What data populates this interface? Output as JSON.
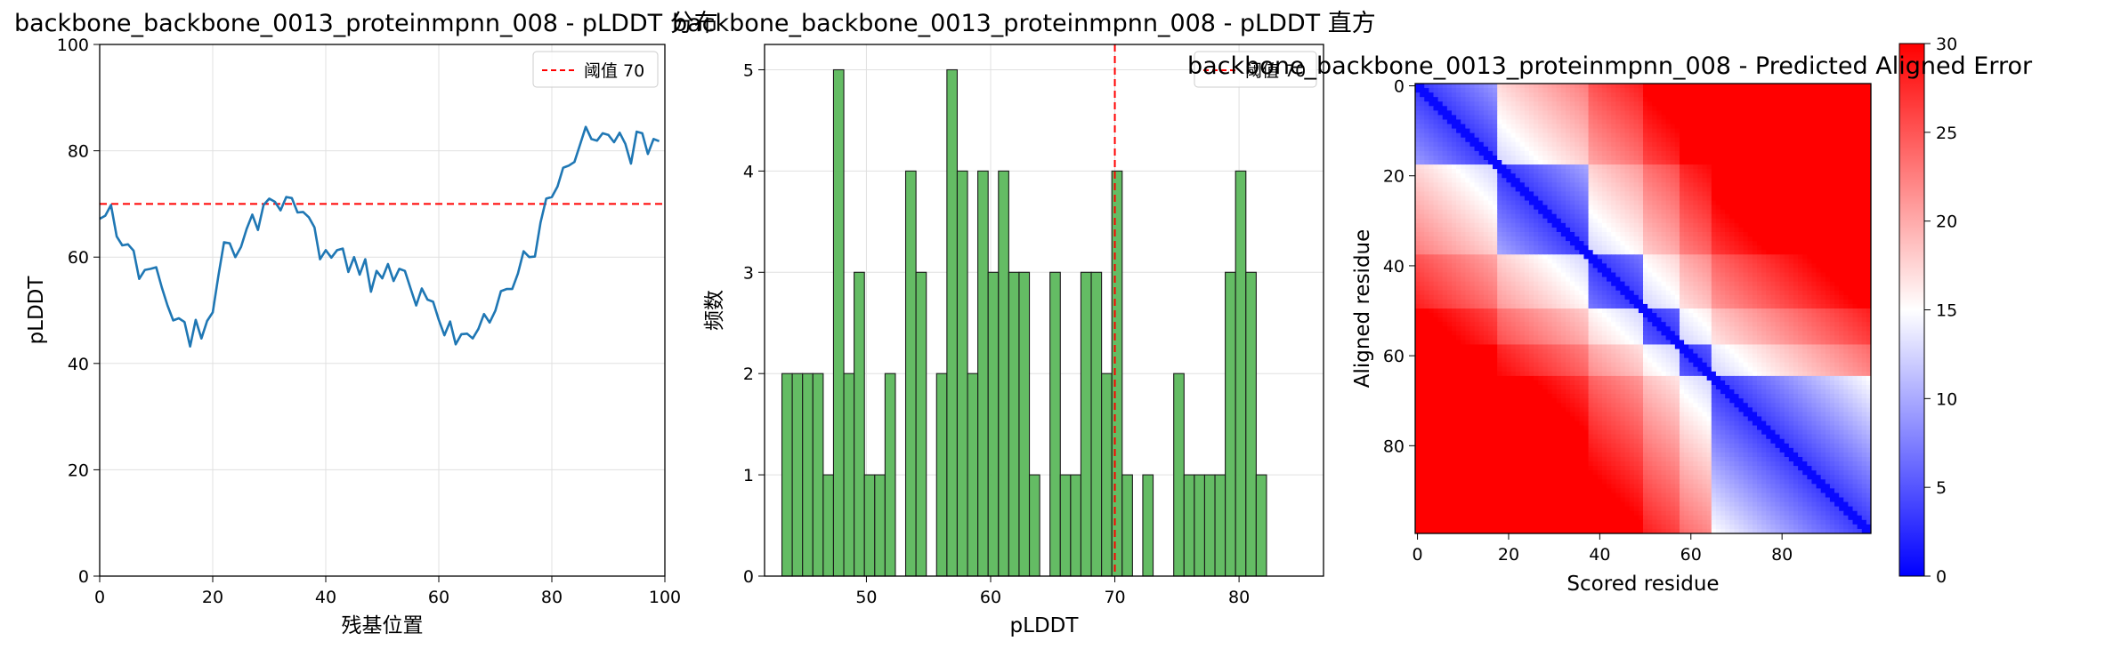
{
  "chart_data": [
    {
      "type": "line",
      "title": "backbone_backbone_0013_proteinmpnn_008 - pLDDT 分布",
      "xlabel": "残基位置",
      "ylabel": "pLDDT",
      "xlim": [
        0,
        100
      ],
      "ylim": [
        0,
        100
      ],
      "xticks": [
        "0",
        "20",
        "40",
        "60",
        "80",
        "100"
      ],
      "yticks": [
        "0",
        "20",
        "40",
        "60",
        "80",
        "100"
      ],
      "grid": true,
      "legend_position": "top-right",
      "threshold": {
        "value": 70,
        "label": "阈值 70",
        "color": "#ff0000",
        "style": "dashed"
      },
      "series": [
        {
          "color": "#1f77b4",
          "x": [
            0,
            1,
            2,
            3,
            4,
            5,
            6,
            7,
            8,
            9,
            10,
            11,
            12,
            13,
            14,
            15,
            16,
            17,
            18,
            19,
            20,
            21,
            22,
            23,
            24,
            25,
            26,
            27,
            28,
            29,
            30,
            31,
            32,
            33,
            34,
            35,
            36,
            37,
            38,
            39,
            40,
            41,
            42,
            43,
            44,
            45,
            46,
            47,
            48,
            49,
            50,
            51,
            52,
            53,
            54,
            55,
            56,
            57,
            58,
            59,
            60,
            61,
            62,
            63,
            64,
            65,
            66,
            67,
            68,
            69,
            70,
            71,
            72,
            73,
            74,
            75,
            76,
            77,
            78,
            79,
            80,
            81,
            82,
            83,
            84,
            85,
            86,
            87,
            88,
            89,
            90,
            91,
            92,
            93,
            94,
            95,
            96,
            97,
            98,
            99
          ],
          "values": [
            67.2,
            67.8,
            69.8,
            63.9,
            62.2,
            62.4,
            61.2,
            55.9,
            57.6,
            57.8,
            58.1,
            54.3,
            50.9,
            48.1,
            48.5,
            47.8,
            43.2,
            48.2,
            44.7,
            48.0,
            49.6,
            56.4,
            62.8,
            62.6,
            60.0,
            61.9,
            65.3,
            68.0,
            65.1,
            69.8,
            71.0,
            70.4,
            68.8,
            71.3,
            71.1,
            68.4,
            68.5,
            67.5,
            65.6,
            59.6,
            61.3,
            59.9,
            61.3,
            61.6,
            57.2,
            60.0,
            56.7,
            59.6,
            53.5,
            57.4,
            56.0,
            58.7,
            55.5,
            57.8,
            57.4,
            54.1,
            50.9,
            54.1,
            52.0,
            51.6,
            48.2,
            45.3,
            47.9,
            43.6,
            45.5,
            45.6,
            44.7,
            46.5,
            49.3,
            47.7,
            49.9,
            53.6,
            54.0,
            54.0,
            56.9,
            61.1,
            60.0,
            60.1,
            66.5,
            71.0,
            71.3,
            73.3,
            76.8,
            77.2,
            77.9,
            81.2,
            84.5,
            82.2,
            81.9,
            83.3,
            83.0,
            81.6,
            83.4,
            81.3,
            77.6,
            83.6,
            83.3,
            79.4,
            82.2,
            81.8
          ]
        }
      ]
    },
    {
      "type": "bar",
      "title": "backbone_backbone_0013_proteinmpnn_008 - pLDDT 直方",
      "xlabel": "pLDDT",
      "ylabel": "频数",
      "xlim": [
        41.8,
        86.8
      ],
      "ylim": [
        0,
        5.25
      ],
      "xticks": [
        "50",
        "60",
        "70",
        "80"
      ],
      "yticks": [
        "0",
        "1",
        "2",
        "3",
        "4",
        "5"
      ],
      "grid": true,
      "legend_position": "top-right",
      "threshold": {
        "value": 70,
        "label": "阈值 70",
        "color": "#ff0000",
        "style": "dashed"
      },
      "bar_color": "#5cb85c",
      "bin_start": 43.2,
      "bin_width": 0.83,
      "values": [
        2,
        2,
        2,
        2,
        1,
        5,
        2,
        3,
        1,
        1,
        2,
        0,
        4,
        3,
        0,
        2,
        5,
        4,
        2,
        4,
        3,
        4,
        3,
        3,
        1,
        0,
        3,
        1,
        1,
        3,
        3,
        2,
        4,
        1,
        0,
        1,
        0,
        0,
        2,
        1,
        1,
        1,
        1,
        3,
        4,
        3,
        1
      ]
    },
    {
      "type": "heatmap",
      "title": "backbone_backbone_0013_proteinmpnn_008 - Predicted Aligned Error",
      "xlabel": "Scored residue",
      "ylabel": "Aligned residue",
      "xticks": [
        "0",
        "20",
        "40",
        "60",
        "80"
      ],
      "yticks": [
        "0",
        "20",
        "40",
        "60",
        "80"
      ],
      "size": 100,
      "colormap": "bwr",
      "vmin": 0,
      "vmax": 30,
      "colorbar_ticks": [
        "0",
        "5",
        "10",
        "15",
        "20",
        "25",
        "30"
      ],
      "diagonal_band": [
        [
          0,
          18
        ],
        [
          18,
          38
        ],
        [
          38,
          50
        ],
        [
          50,
          58
        ],
        [
          58,
          65
        ],
        [
          65,
          99
        ]
      ]
    }
  ]
}
